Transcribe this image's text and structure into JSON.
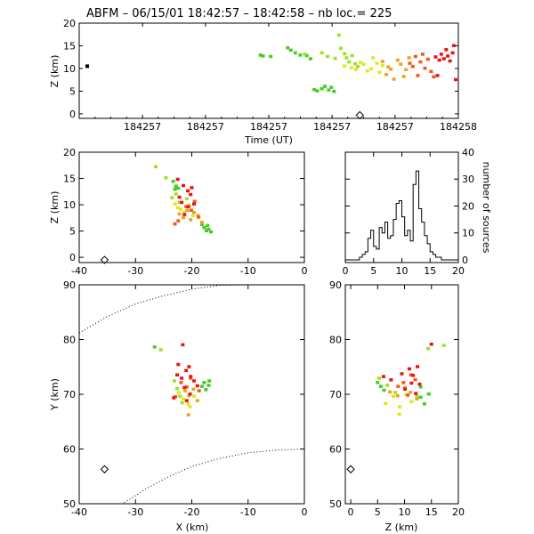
{
  "header": {
    "title": "ABFM – 06/15/01 18:42:57 – 18:42:58 – nb loc.=     225"
  },
  "colors": {
    "scale": [
      "#44cc22",
      "#9ee21e",
      "#dfe81c",
      "#f0a020",
      "#ee5a1a",
      "#e81414"
    ],
    "axis": "#000000",
    "marker": "#000000"
  },
  "chart_data": [
    {
      "id": "time-height",
      "type": "scatter",
      "xlabel": "Time (UT)",
      "ylabel": "Z (km)",
      "xlim": [
        0,
        1
      ],
      "ylim": [
        -1,
        20
      ],
      "xticks": [
        0.167,
        0.333,
        0.5,
        0.667,
        0.833,
        1.0
      ],
      "xtick_labels": [
        "184257",
        "184257",
        "184257",
        "184257",
        "184257",
        "184258"
      ],
      "yticks": [
        0,
        5,
        10,
        15,
        20
      ],
      "marker": {
        "x": 0.0,
        "y": 10.5
      },
      "diamond": {
        "x": 0.74,
        "y": -0.3
      },
      "groups": [
        {
          "color_index": 0,
          "points": [
            [
              0.478,
              12.9
            ],
            [
              0.485,
              12.7
            ],
            [
              0.505,
              12.6
            ],
            [
              0.55,
              14.5
            ],
            [
              0.558,
              14.0
            ],
            [
              0.57,
              13.4
            ],
            [
              0.583,
              12.9
            ],
            [
              0.6,
              12.8
            ],
            [
              0.61,
              12.1
            ],
            [
              0.62,
              5.3
            ],
            [
              0.628,
              5.0
            ],
            [
              0.64,
              5.5
            ],
            [
              0.648,
              6.0
            ],
            [
              0.658,
              5.2
            ],
            [
              0.665,
              5.8
            ],
            [
              0.672,
              4.9
            ]
          ]
        },
        {
          "color_index": 1,
          "points": [
            [
              0.595,
              13.1
            ],
            [
              0.64,
              13.4
            ],
            [
              0.655,
              12.6
            ],
            [
              0.675,
              12.2
            ],
            [
              0.685,
              17.3
            ],
            [
              0.69,
              14.4
            ],
            [
              0.7,
              13.2
            ],
            [
              0.705,
              12.3
            ],
            [
              0.712,
              11.4
            ],
            [
              0.72,
              12.8
            ],
            [
              0.728,
              11.0
            ],
            [
              0.735,
              10.4
            ]
          ]
        },
        {
          "color_index": 2,
          "points": [
            [
              0.7,
              10.5
            ],
            [
              0.718,
              10.1
            ],
            [
              0.73,
              9.7
            ],
            [
              0.742,
              11.3
            ],
            [
              0.75,
              10.9
            ],
            [
              0.76,
              9.4
            ],
            [
              0.77,
              9.9
            ],
            [
              0.775,
              12.3
            ],
            [
              0.785,
              11.1
            ],
            [
              0.792,
              9.1
            ],
            [
              0.8,
              10.6
            ]
          ]
        },
        {
          "color_index": 3,
          "points": [
            [
              0.8,
              11.5
            ],
            [
              0.81,
              8.6
            ],
            [
              0.815,
              10.3
            ],
            [
              0.822,
              9.8
            ],
            [
              0.83,
              7.6
            ],
            [
              0.84,
              11.8
            ],
            [
              0.848,
              10.9
            ],
            [
              0.856,
              8.2
            ],
            [
              0.862,
              9.7
            ],
            [
              0.87,
              12.3
            ]
          ]
        },
        {
          "color_index": 4,
          "points": [
            [
              0.872,
              11.1
            ],
            [
              0.88,
              10.4
            ],
            [
              0.887,
              12.6
            ],
            [
              0.893,
              8.4
            ],
            [
              0.9,
              11.4
            ],
            [
              0.906,
              13.1
            ],
            [
              0.912,
              10.0
            ],
            [
              0.92,
              12.0
            ],
            [
              0.928,
              9.3
            ],
            [
              0.935,
              8.1
            ]
          ]
        },
        {
          "color_index": 5,
          "points": [
            [
              0.94,
              12.5
            ],
            [
              0.945,
              8.4
            ],
            [
              0.95,
              11.8
            ],
            [
              0.955,
              13.1
            ],
            [
              0.962,
              12.1
            ],
            [
              0.968,
              14.1
            ],
            [
              0.972,
              12.7
            ],
            [
              0.978,
              11.6
            ],
            [
              0.985,
              13.4
            ],
            [
              0.988,
              15.0
            ],
            [
              0.993,
              7.5
            ]
          ]
        }
      ]
    },
    {
      "id": "xz",
      "type": "scatter",
      "xlabel": "",
      "ylabel": "Z (km)",
      "xlim": [
        -40,
        0
      ],
      "ylim": [
        -1,
        20
      ],
      "xticks": [
        -40,
        -30,
        -20,
        -10,
        0
      ],
      "yticks": [
        0,
        5,
        10,
        15,
        20
      ],
      "diamond": {
        "x": -35.5,
        "y": -0.5
      },
      "groups": [
        {
          "color_index": 0,
          "points": [
            [
              -23.3,
              14.4
            ],
            [
              -22.8,
              13.5
            ],
            [
              -22.4,
              13.1
            ],
            [
              -23.0,
              12.9
            ],
            [
              -18.2,
              6.2
            ],
            [
              -17.8,
              5.6
            ],
            [
              -17.4,
              5.0
            ],
            [
              -17.0,
              5.3
            ],
            [
              -16.6,
              4.8
            ],
            [
              -17.2,
              6.0
            ]
          ]
        },
        {
          "color_index": 1,
          "points": [
            [
              -26.4,
              17.2
            ],
            [
              -24.6,
              15.1
            ],
            [
              -23.5,
              11.3
            ],
            [
              -22.8,
              12.0
            ],
            [
              -22.2,
              10.4
            ],
            [
              -20.9,
              11.1
            ]
          ]
        },
        {
          "color_index": 2,
          "points": [
            [
              -23.0,
              10.1
            ],
            [
              -22.5,
              9.4
            ],
            [
              -22.0,
              9.1
            ],
            [
              -21.3,
              8.6
            ],
            [
              -20.5,
              9.9
            ],
            [
              -19.8,
              7.9
            ]
          ]
        },
        {
          "color_index": 3,
          "points": [
            [
              -22.2,
              8.2
            ],
            [
              -21.5,
              7.5
            ],
            [
              -20.8,
              8.9
            ],
            [
              -20.2,
              7.1
            ],
            [
              -19.6,
              8.5
            ],
            [
              -18.9,
              7.9
            ],
            [
              -18.2,
              6.6
            ]
          ]
        },
        {
          "color_index": 4,
          "points": [
            [
              -21.0,
              9.6
            ],
            [
              -20.1,
              8.9
            ],
            [
              -19.5,
              10.6
            ],
            [
              -18.8,
              7.6
            ],
            [
              -22.4,
              6.9
            ],
            [
              -23.0,
              6.3
            ]
          ]
        },
        {
          "color_index": 5,
          "points": [
            [
              -22.5,
              14.8
            ],
            [
              -21.5,
              13.6
            ],
            [
              -20.7,
              12.6
            ],
            [
              -20.2,
              11.9
            ],
            [
              -21.8,
              10.4
            ],
            [
              -19.6,
              10.1
            ],
            [
              -20.6,
              9.6
            ],
            [
              -21.3,
              8.1
            ],
            [
              -22.2,
              11.4
            ],
            [
              -20.0,
              13.2
            ]
          ]
        }
      ]
    },
    {
      "id": "histogram",
      "type": "histogram",
      "xlabel": "",
      "ylabel": "number of sources",
      "xlim": [
        0,
        20
      ],
      "ylim": [
        -1,
        40
      ],
      "xticks": [
        0,
        5,
        10,
        15,
        20
      ],
      "yticks": [
        0,
        10,
        20,
        30,
        40
      ],
      "bin_width": 0.5,
      "bins_start": 2.0,
      "counts": [
        0,
        1,
        2,
        3,
        8,
        11,
        5,
        4,
        12,
        10,
        14,
        8,
        9,
        15,
        21,
        22,
        16,
        9,
        11,
        7,
        28,
        33,
        19,
        14,
        9,
        6,
        3,
        2,
        1,
        1,
        0
      ]
    },
    {
      "id": "xy",
      "type": "scatter",
      "xlabel": "X (km)",
      "ylabel": "Y (km)",
      "xlim": [
        -40,
        0
      ],
      "ylim": [
        50,
        90
      ],
      "xticks": [
        -40,
        -30,
        -20,
        -10,
        0
      ],
      "yticks": [
        50,
        60,
        70,
        80,
        90
      ],
      "diamond": {
        "x": -35.5,
        "y": 56.3
      },
      "range_rings": [
        [
          [
            -40,
            81.2
          ],
          [
            -35,
            84.2
          ],
          [
            -30,
            86.5
          ],
          [
            -25,
            88.0
          ],
          [
            -20,
            89.2
          ],
          [
            -15,
            89.9
          ],
          [
            -10,
            90.0
          ]
        ],
        [
          [
            -32,
            50.2
          ],
          [
            -28,
            52.8
          ],
          [
            -24,
            55.0
          ],
          [
            -20,
            56.8
          ],
          [
            -15,
            58.3
          ],
          [
            -10,
            59.3
          ],
          [
            -5,
            59.8
          ],
          [
            0,
            60.0
          ]
        ]
      ],
      "groups": [
        {
          "color_index": 0,
          "points": [
            [
              -26.6,
              78.6
            ],
            [
              -17.8,
              72.1
            ],
            [
              -17.0,
              71.6
            ],
            [
              -16.9,
              72.4
            ],
            [
              -17.5,
              70.8
            ],
            [
              -18.2,
              71.4
            ]
          ]
        },
        {
          "color_index": 1,
          "points": [
            [
              -25.5,
              78.1
            ],
            [
              -23.1,
              72.4
            ],
            [
              -22.6,
              71.0
            ],
            [
              -22.1,
              69.6
            ],
            [
              -21.7,
              68.4
            ]
          ]
        },
        {
          "color_index": 2,
          "points": [
            [
              -22.3,
              70.3
            ],
            [
              -21.5,
              69.1
            ],
            [
              -20.6,
              68.2
            ],
            [
              -19.6,
              69.6
            ],
            [
              -20.3,
              67.7
            ]
          ]
        },
        {
          "color_index": 3,
          "points": [
            [
              -21.2,
              70.6
            ],
            [
              -20.5,
              69.7
            ],
            [
              -19.7,
              70.9
            ],
            [
              -19.0,
              68.8
            ],
            [
              -20.6,
              66.2
            ]
          ]
        },
        {
          "color_index": 4,
          "points": [
            [
              -21.9,
              72.1
            ],
            [
              -20.9,
              71.3
            ],
            [
              -20.2,
              72.9
            ],
            [
              -18.7,
              70.6
            ],
            [
              -22.9,
              69.5
            ]
          ]
        },
        {
          "color_index": 5,
          "points": [
            [
              -22.6,
              73.5
            ],
            [
              -21.8,
              72.9
            ],
            [
              -21.0,
              74.3
            ],
            [
              -20.5,
              75.0
            ],
            [
              -20.2,
              73.2
            ],
            [
              -19.6,
              72.4
            ],
            [
              -21.3,
              71.2
            ],
            [
              -20.3,
              70.0
            ],
            [
              -23.2,
              69.3
            ],
            [
              -20.9,
              68.8
            ],
            [
              -19.0,
              71.5
            ],
            [
              -22.4,
              75.4
            ],
            [
              -21.6,
              79.0
            ]
          ]
        }
      ]
    },
    {
      "id": "zy",
      "type": "scatter",
      "xlabel": "Z (km)",
      "ylabel": "",
      "xlim": [
        -1,
        20
      ],
      "ylim": [
        50,
        90
      ],
      "xticks": [
        0,
        5,
        10,
        15,
        20
      ],
      "yticks": [
        50,
        60,
        70,
        80,
        90
      ],
      "diamond": {
        "x": 0.0,
        "y": 56.3
      },
      "groups": [
        {
          "color_index": 0,
          "points": [
            [
              5.0,
              72.1
            ],
            [
              5.6,
              71.4
            ],
            [
              6.2,
              70.7
            ],
            [
              13.0,
              69.4
            ],
            [
              13.7,
              68.2
            ],
            [
              14.5,
              70.0
            ],
            [
              13.0,
              71.3
            ]
          ]
        },
        {
          "color_index": 1,
          "points": [
            [
              5.3,
              72.9
            ],
            [
              6.8,
              71.6
            ],
            [
              8.3,
              70.3
            ],
            [
              12.3,
              69.6
            ],
            [
              14.4,
              78.3
            ],
            [
              17.3,
              78.9
            ]
          ]
        },
        {
          "color_index": 2,
          "points": [
            [
              6.5,
              68.3
            ],
            [
              7.9,
              69.6
            ],
            [
              9.1,
              67.7
            ],
            [
              10.3,
              69.9
            ],
            [
              9.0,
              66.3
            ],
            [
              11.3,
              68.6
            ]
          ]
        },
        {
          "color_index": 3,
          "points": [
            [
              7.3,
              70.4
            ],
            [
              8.7,
              69.7
            ],
            [
              10.1,
              71.2
            ],
            [
              11.1,
              70.3
            ],
            [
              12.3,
              69.1
            ]
          ]
        },
        {
          "color_index": 4,
          "points": [
            [
              8.8,
              71.4
            ],
            [
              9.8,
              72.1
            ],
            [
              11.2,
              73.5
            ],
            [
              12.0,
              72.6
            ],
            [
              10.6,
              69.8
            ]
          ]
        },
        {
          "color_index": 5,
          "points": [
            [
              6.1,
              73.2
            ],
            [
              9.5,
              73.7
            ],
            [
              10.9,
              74.6
            ],
            [
              11.6,
              73.4
            ],
            [
              12.4,
              75.0
            ],
            [
              11.3,
              72.0
            ],
            [
              12.8,
              71.8
            ],
            [
              10.1,
              70.9
            ],
            [
              12.1,
              70.1
            ],
            [
              15.0,
              79.1
            ],
            [
              7.5,
              72.6
            ]
          ]
        }
      ]
    }
  ]
}
